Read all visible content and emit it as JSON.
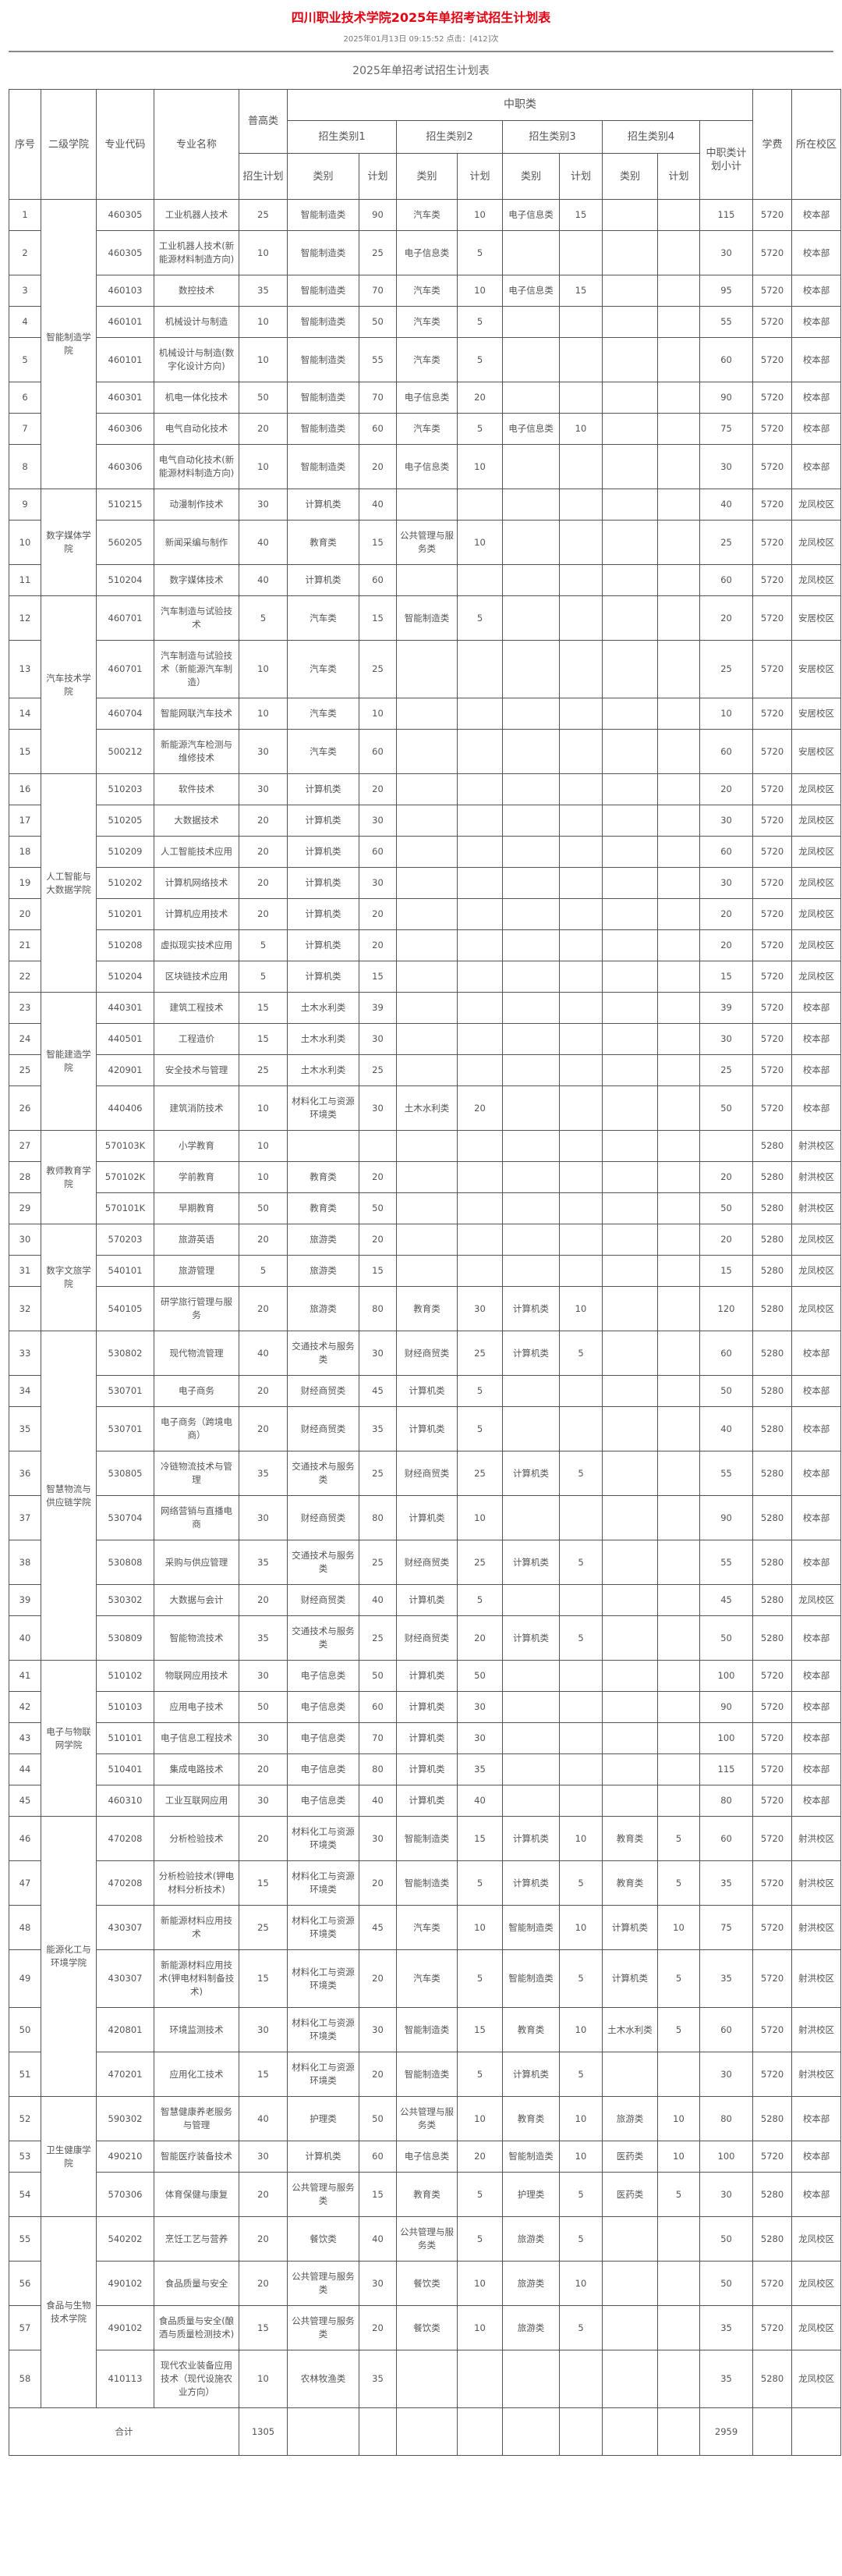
{
  "page": {
    "title": "四川职业技术学院2025年单招考试招生计划表",
    "meta": "2025年01月13日 09:15:52 点击：[412]次",
    "table_title": "2025年单招考试招生计划表"
  },
  "header": {
    "no": "序号",
    "college": "二级学院",
    "code": "专业代码",
    "name": "专业名称",
    "pugao": "普高类",
    "pugao_plan": "招生计划",
    "zhongzhi": "中职类",
    "cat1": "招生类别1",
    "cat2": "招生类别2",
    "cat3": "招生类别3",
    "cat4": "招生类别4",
    "type": "类别",
    "plan": "计划",
    "subtotal": "中职类计划小计",
    "fee": "学费",
    "campus": "所在校区"
  },
  "groups": [
    {
      "college": "智能制造学院",
      "rows": [
        [
          "1",
          "460305",
          "工业机器人技术",
          "25",
          "智能制造类",
          "90",
          "汽车类",
          "10",
          "电子信息类",
          "15",
          "",
          "",
          "115",
          "5720",
          "校本部"
        ],
        [
          "2",
          "460305",
          "工业机器人技术(新能源材料制造方向)",
          "10",
          "智能制造类",
          "25",
          "电子信息类",
          "5",
          "",
          "",
          "",
          "",
          "30",
          "5720",
          "校本部"
        ],
        [
          "3",
          "460103",
          "数控技术",
          "35",
          "智能制造类",
          "70",
          "汽车类",
          "10",
          "电子信息类",
          "15",
          "",
          "",
          "95",
          "5720",
          "校本部"
        ],
        [
          "4",
          "460101",
          "机械设计与制造",
          "10",
          "智能制造类",
          "50",
          "汽车类",
          "5",
          "",
          "",
          "",
          "",
          "55",
          "5720",
          "校本部"
        ],
        [
          "5",
          "460101",
          "机械设计与制造(数字化设计方向)",
          "10",
          "智能制造类",
          "55",
          "汽车类",
          "5",
          "",
          "",
          "",
          "",
          "60",
          "5720",
          "校本部"
        ],
        [
          "6",
          "460301",
          "机电一体化技术",
          "50",
          "智能制造类",
          "70",
          "电子信息类",
          "20",
          "",
          "",
          "",
          "",
          "90",
          "5720",
          "校本部"
        ],
        [
          "7",
          "460306",
          "电气自动化技术",
          "20",
          "智能制造类",
          "60",
          "汽车类",
          "5",
          "电子信息类",
          "10",
          "",
          "",
          "75",
          "5720",
          "校本部"
        ],
        [
          "8",
          "460306",
          "电气自动化技术(新能源材料制造方向)",
          "10",
          "智能制造类",
          "20",
          "电子信息类",
          "10",
          "",
          "",
          "",
          "",
          "30",
          "5720",
          "校本部"
        ]
      ]
    },
    {
      "college": "数字媒体学院",
      "rows": [
        [
          "9",
          "510215",
          "动漫制作技术",
          "30",
          "计算机类",
          "40",
          "",
          "",
          "",
          "",
          "",
          "",
          "40",
          "5720",
          "龙凤校区"
        ],
        [
          "10",
          "560205",
          "新闻采编与制作",
          "40",
          "教育类",
          "15",
          "公共管理与服务类",
          "10",
          "",
          "",
          "",
          "",
          "25",
          "5720",
          "龙凤校区"
        ],
        [
          "11",
          "510204",
          "数字媒体技术",
          "40",
          "计算机类",
          "60",
          "",
          "",
          "",
          "",
          "",
          "",
          "60",
          "5720",
          "龙凤校区"
        ]
      ]
    },
    {
      "college": "汽车技术学院",
      "rows": [
        [
          "12",
          "460701",
          "汽车制造与试验技术",
          "5",
          "汽车类",
          "15",
          "智能制造类",
          "5",
          "",
          "",
          "",
          "",
          "20",
          "5720",
          "安居校区"
        ],
        [
          "13",
          "460701",
          "汽车制造与试验技术（新能源汽车制造）",
          "10",
          "汽车类",
          "25",
          "",
          "",
          "",
          "",
          "",
          "",
          "25",
          "5720",
          "安居校区"
        ],
        [
          "14",
          "460704",
          "智能网联汽车技术",
          "10",
          "汽车类",
          "10",
          "",
          "",
          "",
          "",
          "",
          "",
          "10",
          "5720",
          "安居校区"
        ],
        [
          "15",
          "500212",
          "新能源汽车检测与维修技术",
          "30",
          "汽车类",
          "60",
          "",
          "",
          "",
          "",
          "",
          "",
          "60",
          "5720",
          "安居校区"
        ]
      ]
    },
    {
      "college": "人工智能与大数据学院",
      "rows": [
        [
          "16",
          "510203",
          "软件技术",
          "30",
          "计算机类",
          "20",
          "",
          "",
          "",
          "",
          "",
          "",
          "20",
          "5720",
          "龙凤校区"
        ],
        [
          "17",
          "510205",
          "大数据技术",
          "20",
          "计算机类",
          "30",
          "",
          "",
          "",
          "",
          "",
          "",
          "30",
          "5720",
          "龙凤校区"
        ],
        [
          "18",
          "510209",
          "人工智能技术应用",
          "20",
          "计算机类",
          "60",
          "",
          "",
          "",
          "",
          "",
          "",
          "60",
          "5720",
          "龙凤校区"
        ],
        [
          "19",
          "510202",
          "计算机网络技术",
          "20",
          "计算机类",
          "30",
          "",
          "",
          "",
          "",
          "",
          "",
          "30",
          "5720",
          "龙凤校区"
        ],
        [
          "20",
          "510201",
          "计算机应用技术",
          "20",
          "计算机类",
          "20",
          "",
          "",
          "",
          "",
          "",
          "",
          "20",
          "5720",
          "龙凤校区"
        ],
        [
          "21",
          "510208",
          "虚拟现实技术应用",
          "5",
          "计算机类",
          "20",
          "",
          "",
          "",
          "",
          "",
          "",
          "20",
          "5720",
          "龙凤校区"
        ],
        [
          "22",
          "510204",
          "区块链技术应用",
          "5",
          "计算机类",
          "15",
          "",
          "",
          "",
          "",
          "",
          "",
          "15",
          "5720",
          "龙凤校区"
        ]
      ]
    },
    {
      "college": "智能建造学院",
      "rows": [
        [
          "23",
          "440301",
          "建筑工程技术",
          "15",
          "土木水利类",
          "39",
          "",
          "",
          "",
          "",
          "",
          "",
          "39",
          "5720",
          "校本部"
        ],
        [
          "24",
          "440501",
          "工程造价",
          "15",
          "土木水利类",
          "30",
          "",
          "",
          "",
          "",
          "",
          "",
          "30",
          "5720",
          "校本部"
        ],
        [
          "25",
          "420901",
          "安全技术与管理",
          "25",
          "土木水利类",
          "25",
          "",
          "",
          "",
          "",
          "",
          "",
          "25",
          "5720",
          "校本部"
        ],
        [
          "26",
          "440406",
          "建筑消防技术",
          "10",
          "材料化工与资源环境类",
          "30",
          "土木水利类",
          "20",
          "",
          "",
          "",
          "",
          "50",
          "5720",
          "校本部"
        ]
      ]
    },
    {
      "college": "教师教育学院",
      "rows": [
        [
          "27",
          "570103K",
          "小学教育",
          "10",
          "",
          "",
          "",
          "",
          "",
          "",
          "",
          "",
          "",
          "5280",
          "射洪校区"
        ],
        [
          "28",
          "570102K",
          "学前教育",
          "10",
          "教育类",
          "20",
          "",
          "",
          "",
          "",
          "",
          "",
          "20",
          "5280",
          "射洪校区"
        ],
        [
          "29",
          "570101K",
          "早期教育",
          "50",
          "教育类",
          "50",
          "",
          "",
          "",
          "",
          "",
          "",
          "50",
          "5280",
          "射洪校区"
        ]
      ]
    },
    {
      "college": "数字文旅学院",
      "rows": [
        [
          "30",
          "570203",
          "旅游英语",
          "20",
          "旅游类",
          "20",
          "",
          "",
          "",
          "",
          "",
          "",
          "20",
          "5280",
          "龙凤校区"
        ],
        [
          "31",
          "540101",
          "旅游管理",
          "5",
          "旅游类",
          "15",
          "",
          "",
          "",
          "",
          "",
          "",
          "15",
          "5280",
          "龙凤校区"
        ],
        [
          "32",
          "540105",
          "研学旅行管理与服务",
          "20",
          "旅游类",
          "80",
          "教育类",
          "30",
          "计算机类",
          "10",
          "",
          "",
          "120",
          "5280",
          "龙凤校区"
        ]
      ]
    },
    {
      "college": "智慧物流与供应链学院",
      "rows": [
        [
          "33",
          "530802",
          "现代物流管理",
          "40",
          "交通技术与服务类",
          "30",
          "财经商贸类",
          "25",
          "计算机类",
          "5",
          "",
          "",
          "60",
          "5280",
          "校本部"
        ],
        [
          "34",
          "530701",
          "电子商务",
          "20",
          "财经商贸类",
          "45",
          "计算机类",
          "5",
          "",
          "",
          "",
          "",
          "50",
          "5280",
          "校本部"
        ],
        [
          "35",
          "530701",
          "电子商务（跨境电商）",
          "20",
          "财经商贸类",
          "35",
          "计算机类",
          "5",
          "",
          "",
          "",
          "",
          "40",
          "5280",
          "校本部"
        ],
        [
          "36",
          "530805",
          "冷链物流技术与管理",
          "35",
          "交通技术与服务类",
          "25",
          "财经商贸类",
          "25",
          "计算机类",
          "5",
          "",
          "",
          "55",
          "5280",
          "校本部"
        ],
        [
          "37",
          "530704",
          "网络营销与直播电商",
          "30",
          "财经商贸类",
          "80",
          "计算机类",
          "10",
          "",
          "",
          "",
          "",
          "90",
          "5280",
          "校本部"
        ],
        [
          "38",
          "530808",
          "采购与供应管理",
          "35",
          "交通技术与服务类",
          "25",
          "财经商贸类",
          "25",
          "计算机类",
          "5",
          "",
          "",
          "55",
          "5280",
          "校本部"
        ],
        [
          "39",
          "530302",
          "大数据与会计",
          "20",
          "财经商贸类",
          "40",
          "计算机类",
          "5",
          "",
          "",
          "",
          "",
          "45",
          "5280",
          "龙凤校区"
        ],
        [
          "40",
          "530809",
          "智能物流技术",
          "35",
          "交通技术与服务类",
          "25",
          "财经商贸类",
          "20",
          "计算机类",
          "5",
          "",
          "",
          "50",
          "5280",
          "校本部"
        ]
      ]
    },
    {
      "college": "电子与物联网学院",
      "rows": [
        [
          "41",
          "510102",
          "物联网应用技术",
          "30",
          "电子信息类",
          "50",
          "计算机类",
          "50",
          "",
          "",
          "",
          "",
          "100",
          "5720",
          "校本部"
        ],
        [
          "42",
          "510103",
          "应用电子技术",
          "50",
          "电子信息类",
          "60",
          "计算机类",
          "30",
          "",
          "",
          "",
          "",
          "90",
          "5720",
          "校本部"
        ],
        [
          "43",
          "510101",
          "电子信息工程技术",
          "30",
          "电子信息类",
          "70",
          "计算机类",
          "30",
          "",
          "",
          "",
          "",
          "100",
          "5720",
          "校本部"
        ],
        [
          "44",
          "510401",
          "集成电路技术",
          "20",
          "电子信息类",
          "80",
          "计算机类",
          "35",
          "",
          "",
          "",
          "",
          "115",
          "5720",
          "校本部"
        ],
        [
          "45",
          "460310",
          "工业互联网应用",
          "30",
          "电子信息类",
          "40",
          "计算机类",
          "40",
          "",
          "",
          "",
          "",
          "80",
          "5720",
          "校本部"
        ]
      ]
    },
    {
      "college": "能源化工与环境学院",
      "rows": [
        [
          "46",
          "470208",
          "分析检验技术",
          "20",
          "材料化工与资源环境类",
          "30",
          "智能制造类",
          "15",
          "计算机类",
          "10",
          "教育类",
          "5",
          "60",
          "5720",
          "射洪校区"
        ],
        [
          "47",
          "470208",
          "分析检验技术(钾电材料分析技术)",
          "15",
          "材料化工与资源环境类",
          "20",
          "智能制造类",
          "5",
          "计算机类",
          "5",
          "教育类",
          "5",
          "35",
          "5720",
          "射洪校区"
        ],
        [
          "48",
          "430307",
          "新能源材料应用技术",
          "25",
          "材料化工与资源环境类",
          "45",
          "汽车类",
          "10",
          "智能制造类",
          "10",
          "计算机类",
          "10",
          "75",
          "5720",
          "射洪校区"
        ],
        [
          "49",
          "430307",
          "新能源材料应用技术(钾电材料制备技术)",
          "15",
          "材料化工与资源环境类",
          "20",
          "汽车类",
          "5",
          "智能制造类",
          "5",
          "计算机类",
          "5",
          "35",
          "5720",
          "射洪校区"
        ],
        [
          "50",
          "420801",
          "环境监测技术",
          "30",
          "材料化工与资源环境类",
          "30",
          "智能制造类",
          "15",
          "教育类",
          "10",
          "土木水利类",
          "5",
          "60",
          "5720",
          "射洪校区"
        ],
        [
          "51",
          "470201",
          "应用化工技术",
          "15",
          "材料化工与资源环境类",
          "20",
          "智能制造类",
          "5",
          "计算机类",
          "5",
          "",
          "",
          "30",
          "5720",
          "射洪校区"
        ]
      ]
    },
    {
      "college": "卫生健康学院",
      "rows": [
        [
          "52",
          "590302",
          "智慧健康养老服务与管理",
          "40",
          "护理类",
          "50",
          "公共管理与服务类",
          "10",
          "教育类",
          "10",
          "旅游类",
          "10",
          "80",
          "5280",
          "校本部"
        ],
        [
          "53",
          "490210",
          "智能医疗装备技术",
          "30",
          "计算机类",
          "60",
          "电子信息类",
          "20",
          "智能制造类",
          "10",
          "医药类",
          "10",
          "100",
          "5720",
          "校本部"
        ],
        [
          "54",
          "570306",
          "体育保健与康复",
          "20",
          "公共管理与服务类",
          "15",
          "教育类",
          "5",
          "护理类",
          "5",
          "医药类",
          "5",
          "30",
          "5280",
          "校本部"
        ]
      ]
    },
    {
      "college": "食品与生物技术学院",
      "rows": [
        [
          "55",
          "540202",
          "烹饪工艺与营养",
          "20",
          "餐饮类",
          "40",
          "公共管理与服务类",
          "5",
          "旅游类",
          "5",
          "",
          "",
          "50",
          "5280",
          "龙凤校区"
        ],
        [
          "56",
          "490102",
          "食品质量与安全",
          "20",
          "公共管理与服务类",
          "30",
          "餐饮类",
          "10",
          "旅游类",
          "10",
          "",
          "",
          "50",
          "5720",
          "龙凤校区"
        ],
        [
          "57",
          "490102",
          "食品质量与安全(酿酒与质量检测技术)",
          "15",
          "公共管理与服务类",
          "20",
          "餐饮类",
          "10",
          "旅游类",
          "5",
          "",
          "",
          "35",
          "5720",
          "龙凤校区"
        ],
        [
          "58",
          "410113",
          "现代农业装备应用技术（现代设施农业方向）",
          "10",
          "农林牧渔类",
          "35",
          "",
          "",
          "",
          "",
          "",
          "",
          "35",
          "5280",
          "龙凤校区"
        ]
      ]
    }
  ],
  "total": {
    "label": "合计",
    "pugao": "1305",
    "subtotal": "2959"
  }
}
